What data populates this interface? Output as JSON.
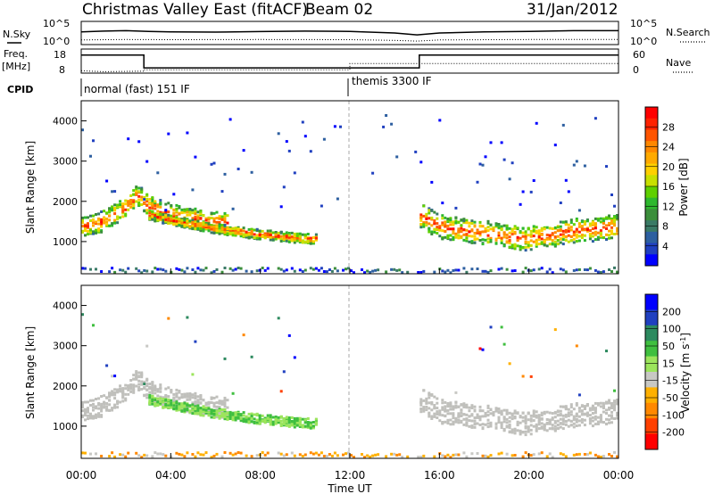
{
  "header": {
    "title": "Christmas Valley East (fitACF)",
    "beam": "Beam 02",
    "date": "31/Jan/2012"
  },
  "params": {
    "nsky_label": "N.Sky",
    "nsearch_label": "N.Search",
    "freq_label_1": "Freq.",
    "freq_label_2": "[MHz]",
    "nave_label": "Nave",
    "cpid_label": "CPID",
    "noise_ticks": [
      "10^5",
      "10^0"
    ],
    "noise_ticks_right": [
      "10^5",
      "10^0"
    ],
    "freq_ticks": [
      "18",
      "8"
    ],
    "nave_ticks": [
      "60",
      "0"
    ],
    "cpid_segments": [
      {
        "start_hour": 0,
        "label": "normal (fast) 151 IF"
      },
      {
        "start_hour": 11.9,
        "label": "themis 3300 IF"
      }
    ]
  },
  "chart_data": [
    {
      "type": "line",
      "name": "noise",
      "xlim": [
        0,
        24
      ],
      "series": [
        {
          "name": "N.Sky",
          "style": "solid",
          "x": [
            0,
            1,
            2,
            3,
            4,
            6,
            8,
            10,
            12,
            14,
            15,
            16,
            18,
            20,
            22,
            24
          ],
          "y": [
            0.55,
            0.58,
            0.6,
            0.57,
            0.55,
            0.54,
            0.56,
            0.58,
            0.57,
            0.5,
            0.42,
            0.5,
            0.55,
            0.57,
            0.6,
            0.6
          ]
        },
        {
          "name": "N.Search",
          "style": "dotted",
          "x": [
            0,
            2,
            4,
            8,
            12,
            14,
            15,
            16,
            20,
            24
          ],
          "y": [
            0.2,
            0.22,
            0.21,
            0.22,
            0.21,
            0.18,
            0.15,
            0.2,
            0.22,
            0.22
          ]
        }
      ]
    },
    {
      "type": "line",
      "name": "frequency_nave",
      "xlim": [
        0,
        24
      ],
      "series": [
        {
          "name": "Freq.",
          "unit": "MHz",
          "style": "solid",
          "x": [
            0,
            2.8,
            2.8,
            15.1,
            15.1,
            24
          ],
          "y": [
            15.5,
            15.5,
            10.2,
            10.2,
            15.5,
            15.5
          ]
        },
        {
          "name": "Nave",
          "style": "dotted",
          "x": [
            0,
            1,
            2.8,
            2.8,
            12,
            12,
            24
          ],
          "y": [
            9,
            8.6,
            8.8,
            9.4,
            9.4,
            12,
            12
          ]
        }
      ]
    },
    {
      "type": "heatmap",
      "name": "power",
      "title": "",
      "xlabel": "",
      "ylabel": "Slant Range [km]",
      "xlim": [
        0,
        24
      ],
      "ylim": [
        200,
        4500
      ],
      "yticks": [
        1000,
        2000,
        3000,
        4000
      ],
      "colorbar": {
        "label": "Power [dB]",
        "ticks": [
          28,
          24,
          20,
          16,
          12,
          8,
          4
        ],
        "colors": [
          "#ff0000",
          "#ff2200",
          "#ff5500",
          "#ff8800",
          "#ffaa00",
          "#ffd000",
          "#c8e000",
          "#5fd000",
          "#2eb82e",
          "#3b8e3b",
          "#3a7a66",
          "#2d5fa0",
          "#2040c0",
          "#0000ff"
        ]
      },
      "features": [
        {
          "name": "evening band",
          "x": [
            0,
            1,
            2,
            2.5,
            3,
            4,
            5,
            6
          ],
          "y": [
            1400,
            1550,
            1900,
            2200,
            1900,
            1700,
            1600,
            1500
          ]
        },
        {
          "name": "spread echoes",
          "x": [
            3,
            4,
            6,
            8,
            10
          ],
          "y": [
            1700,
            1550,
            1350,
            1200,
            1100
          ]
        },
        {
          "name": "morning band",
          "x": [
            15,
            16,
            17,
            18,
            19,
            20,
            21,
            22,
            23,
            24
          ],
          "y": [
            1700,
            1400,
            1300,
            1250,
            1150,
            1100,
            1200,
            1300,
            1350,
            1400
          ]
        },
        {
          "name": "ground scatter near range",
          "x": [
            0,
            24
          ],
          "y": [
            300,
            300
          ]
        }
      ]
    },
    {
      "type": "heatmap",
      "name": "velocity",
      "title": "",
      "xlabel": "Time UT",
      "ylabel": "Slant Range [km]",
      "xlim": [
        0,
        24
      ],
      "ylim": [
        200,
        4500
      ],
      "yticks": [
        1000,
        2000,
        3000,
        4000
      ],
      "xticks": [
        "00:00",
        "04:00",
        "08:00",
        "12:00",
        "16:00",
        "20:00",
        "00:00"
      ],
      "colorbar": {
        "label": "Velocity [m s^-1]",
        "ticks": [
          200,
          100,
          50,
          15,
          -15,
          -50,
          -100,
          -200
        ],
        "colors": [
          "#0000ff",
          "#2040c0",
          "#2d8a5f",
          "#3fbf3f",
          "#9ce55c",
          "#c8c8c4",
          "#ffb000",
          "#ff8800",
          "#ff4000",
          "#ff0000"
        ],
        "ground_scatter_color": "#c0c0bc"
      }
    }
  ]
}
